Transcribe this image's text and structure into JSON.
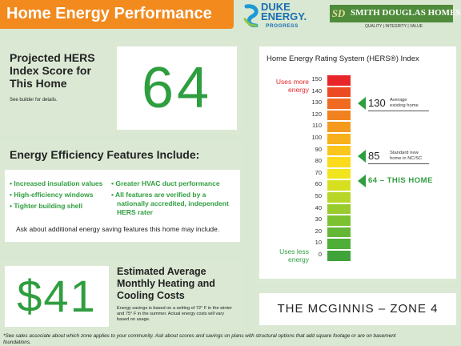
{
  "header": {
    "title": "Home Energy Performance"
  },
  "logos": {
    "duke_line1": "DUKE",
    "duke_line2": "ENERGY.",
    "duke_line3": "PROGRESS",
    "sd_monogram": "SD",
    "sd_name": "SMITH DOUGLAS HOMES",
    "sd_tagline": "QUALITY | INTEGRITY | VALUE"
  },
  "hers_score": {
    "label_line1": "Projected HERS",
    "label_line2": "Index Score for",
    "label_line3": "This Home",
    "note": "See builder for details.",
    "value": "64"
  },
  "features": {
    "title": "Energy Efficiency Features Include:",
    "left_items": [
      "• Increased insulation values",
      "• High-efficiency windows",
      "• Tighter building shell"
    ],
    "right_line1": "• Greater HVAC duct performance",
    "right_line2": "• All features are verified by a",
    "right_line3": "nationally accredited, independent",
    "right_line4": "HERS rater",
    "ask": "Ask about additional energy saving features this home may include."
  },
  "cost": {
    "value": "$41",
    "title_line1": "Estimated Average",
    "title_line2": "Monthly Heating and",
    "title_line3": "Cooling Costs",
    "note_line1": "Energy savings is based on a setting of 72° F in the winter",
    "note_line2": "and 75° F in the summer. Actual energy costs will vary",
    "note_line3": "based on usage."
  },
  "plan": {
    "name": "THE MCGINNIS – ZONE 4"
  },
  "footer": {
    "line1": "*See sales associate about which zone applies to your community.  Ask about scores and savings on plans with structural options that add square footage or are on basement",
    "line2": "foundations."
  },
  "chart_data": {
    "type": "bar",
    "title": "Home Energy Rating System (HERS®) Index",
    "scale_ticks": [
      "150",
      "140",
      "130",
      "120",
      "110",
      "100",
      "90",
      "80",
      "70",
      "60",
      "50",
      "40",
      "30",
      "20",
      "10",
      "0"
    ],
    "top_label_line1": "Uses more",
    "top_label_line2": "energy",
    "bottom_label_line1": "Uses less",
    "bottom_label_line2": "energy",
    "markers": [
      {
        "value": 130,
        "value_text": "130",
        "label_line1": "Average",
        "label_line2": "existing home"
      },
      {
        "value": 85,
        "value_text": "85",
        "label_line1": "Standard new",
        "label_line2": "home in NC/SC"
      },
      {
        "value": 64,
        "value_text": "64 – THIS HOME"
      }
    ],
    "colors": [
      "#e8262a",
      "#ec4a23",
      "#f06a21",
      "#f2821f",
      "#f59a1d",
      "#f8b01b",
      "#fbc51b",
      "#fcdb1c",
      "#f2e51e",
      "#d6e021",
      "#b7d627",
      "#98cc2c",
      "#7cc230",
      "#63b735",
      "#4fae37",
      "#3fa33a"
    ]
  }
}
